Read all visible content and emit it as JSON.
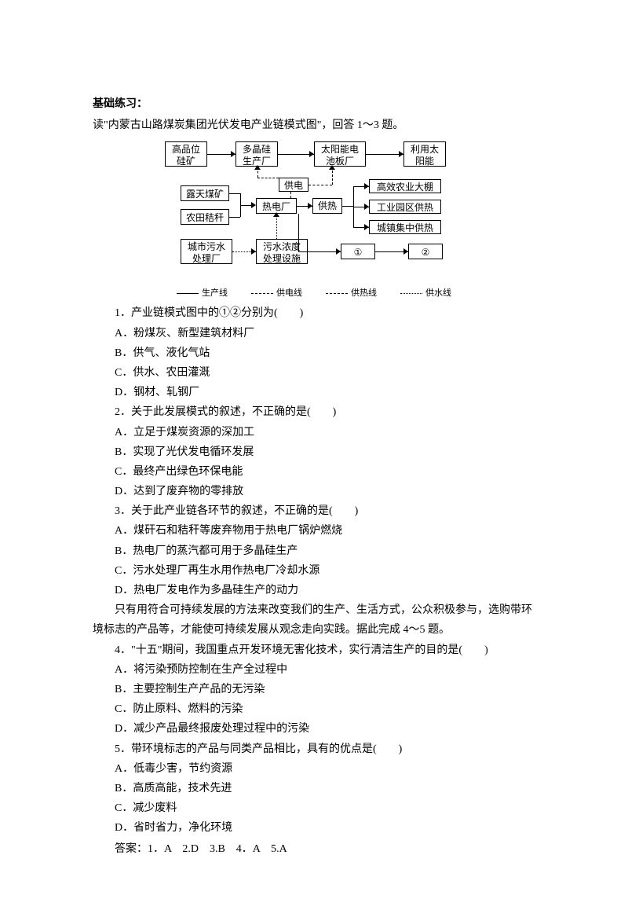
{
  "title": "基础练习：",
  "intro": "读\"内蒙古山路煤炭集团光伏发电产业链模式图\"，回答 1～3 题。",
  "diagram": {
    "boxes": {
      "b1": "高品位\n硅矿",
      "b2": "多晶硅\n生产厂",
      "b3": "太阳能电\n池板厂",
      "b4": "利用太\n阳能",
      "b5": "露天煤矿",
      "b6": "农田秸秆",
      "b7": "热电厂",
      "b8": "供电",
      "b9": "供热",
      "b10": "高效农业大棚",
      "b11": "工业园区供热",
      "b12": "城镇集中供热",
      "b13": "城市污水\n处理厂",
      "b14": "污水浓度\n处理设施",
      "b15": "①",
      "b16": "②"
    },
    "legend": {
      "l1": "生产线",
      "l2": "供电线",
      "l3": "供热线",
      "l4": "供水线"
    }
  },
  "q1": {
    "stem": "1．产业链模式图中的①②分别为(　　)",
    "A": "A．粉煤灰、新型建筑材料厂",
    "B": "B．供气、液化气站",
    "C": "C．供水、农田灌溉",
    "D": "D．钢材、轧钢厂"
  },
  "q2": {
    "stem": "2．关于此发展模式的叙述，不正确的是(　　)",
    "A": "A．立足于煤炭资源的深加工",
    "B": "B．实现了光伏发电循环发展",
    "C": "C．最终产出绿色环保电能",
    "D": "D．达到了废弃物的零排放"
  },
  "q3": {
    "stem": "3．关于此产业链各环节的叙述，不正确的是(　　)",
    "A": "A．煤矸石和秸秆等废弃物用于热电厂锅炉燃烧",
    "B": "B．热电厂的蒸汽都可用于多晶硅生产",
    "C": "C．污水处理厂再生水用作热电厂冷却水源",
    "D": "D．热电厂发电作为多晶硅生产的动力"
  },
  "passage": "只有用符合可持续发展的方法来改变我们的生产、生活方式，公众积极参与，选购带环境标志的产品等，才能使可持续发展从观念走向实践。据此完成 4～5 题。",
  "q4": {
    "stem": "4．\"十五\"期间，我国重点开发环境无害化技术，实行清洁生产的目的是(　　)",
    "A": "A．将污染预防控制在生产全过程中",
    "B": "B．主要控制生产产品的无污染",
    "C": "C．防止原料、燃料的污染",
    "D": "D．减少产品最终报废处理过程中的污染"
  },
  "q5": {
    "stem": "5．带环境标志的产品与同类产品相比，具有的优点是(　　)",
    "A": "A．低毒少害，节约资源",
    "B": "B．高质高能，技术先进",
    "C": "C．减少废料",
    "D": "D．省时省力，净化环境"
  },
  "answers": "答案：1．A　2.D　3.B　4．A　5.A"
}
